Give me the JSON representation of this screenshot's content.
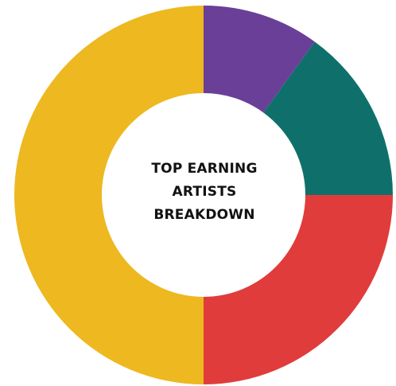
{
  "chart_data": {
    "type": "pie",
    "variant": "donut",
    "title_lines": [
      "TOP EARNING",
      "ARTISTS",
      "BREAKDOWN"
    ],
    "slices": [
      {
        "value": 10,
        "color": "#6a3f98"
      },
      {
        "value": 15,
        "color": "#0f706b"
      },
      {
        "value": 25,
        "color": "#e03c3c"
      },
      {
        "value": 50,
        "color": "#edb820"
      }
    ],
    "start_angle_deg": 0,
    "direction": "clockwise",
    "legend": "none"
  }
}
